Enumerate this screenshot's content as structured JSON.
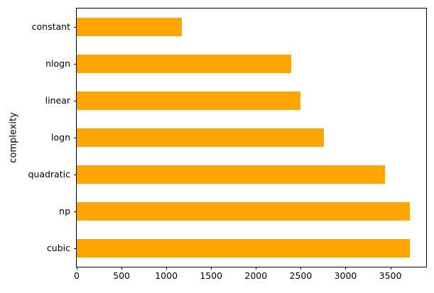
{
  "chart_data": {
    "type": "bar",
    "orientation": "horizontal",
    "title": "",
    "xlabel": "",
    "ylabel": "complexity",
    "categories_top_to_bottom": [
      "constant",
      "nlogn",
      "linear",
      "logn",
      "quadratic",
      "np",
      "cubic"
    ],
    "values": [
      1175,
      2390,
      2495,
      2755,
      3440,
      3715,
      3715
    ],
    "x_ticks": [
      0,
      500,
      1000,
      1500,
      2000,
      2500,
      3000,
      3500
    ],
    "xlim": [
      0,
      3900
    ],
    "bar_color": "#FFA500",
    "axis_color": "#000000",
    "background_color": "#FFFFFF",
    "grid": false,
    "legend": false,
    "bar_relative_height": 0.5
  }
}
